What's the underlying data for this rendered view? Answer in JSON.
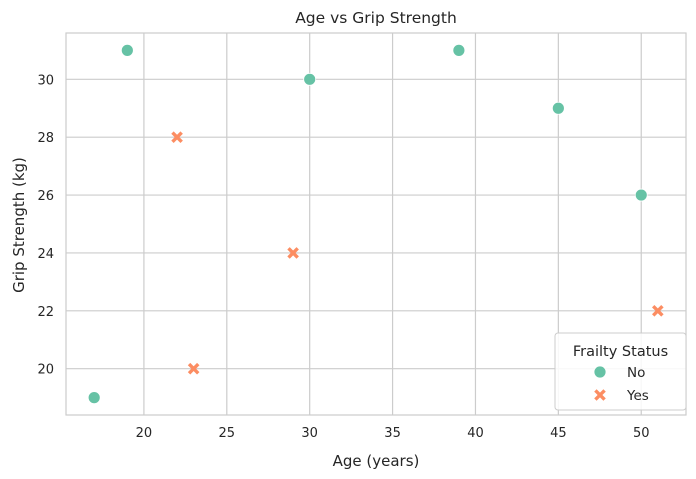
{
  "chart_data": {
    "type": "scatter",
    "title": "Age vs Grip Strength",
    "xlabel": "Age (years)",
    "ylabel": "Grip Strength (kg)",
    "xlim": [
      15.3,
      52.7
    ],
    "ylim": [
      18.4,
      31.6
    ],
    "xticks": [
      20,
      25,
      30,
      35,
      40,
      45,
      50
    ],
    "yticks": [
      20,
      22,
      24,
      26,
      28,
      30
    ],
    "grid": true,
    "legend": {
      "title": "Frailty Status",
      "placement": "bottom-right"
    },
    "series": [
      {
        "name": "No",
        "marker": "circle",
        "color": "#66c2a5",
        "points": [
          {
            "x": 17,
            "y": 19
          },
          {
            "x": 19,
            "y": 31
          },
          {
            "x": 30,
            "y": 30
          },
          {
            "x": 39,
            "y": 31
          },
          {
            "x": 45,
            "y": 29
          },
          {
            "x": 50,
            "y": 26
          }
        ]
      },
      {
        "name": "Yes",
        "marker": "x",
        "color": "#fc8d62",
        "points": [
          {
            "x": 22,
            "y": 28
          },
          {
            "x": 23,
            "y": 20
          },
          {
            "x": 29,
            "y": 24
          },
          {
            "x": 51,
            "y": 22
          }
        ]
      }
    ]
  }
}
